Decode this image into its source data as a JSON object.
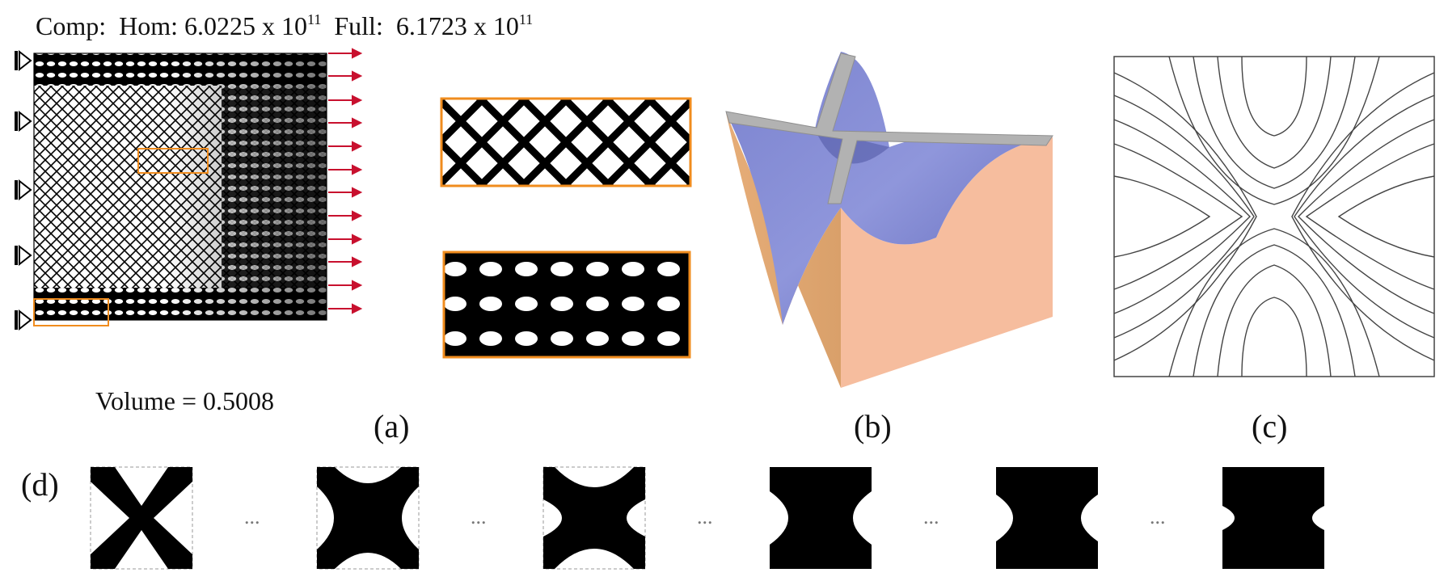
{
  "header": {
    "comp_label": "Comp:",
    "hom_label": "Hom: 6.0225 x 10",
    "hom_exp": "11",
    "full_label": "Full:",
    "full_value": "6.1723 x 10",
    "full_exp": "11"
  },
  "panel_a": {
    "volume_text": "Volume = 0.5008",
    "label": "(a)"
  },
  "panel_b": {
    "label": "(b)"
  },
  "panel_c": {
    "label": "(c)"
  },
  "panel_d": {
    "label": "(d)",
    "ellipsis": "...",
    "cell_count": 6
  },
  "colors": {
    "force_arrow": "#c8102e",
    "zoom_box": "#f08c1e",
    "surface_top": "#8a90d6",
    "side_left": "#e8b27e",
    "side_right": "#f4bc9c",
    "ridge": "#b0b0b0"
  }
}
